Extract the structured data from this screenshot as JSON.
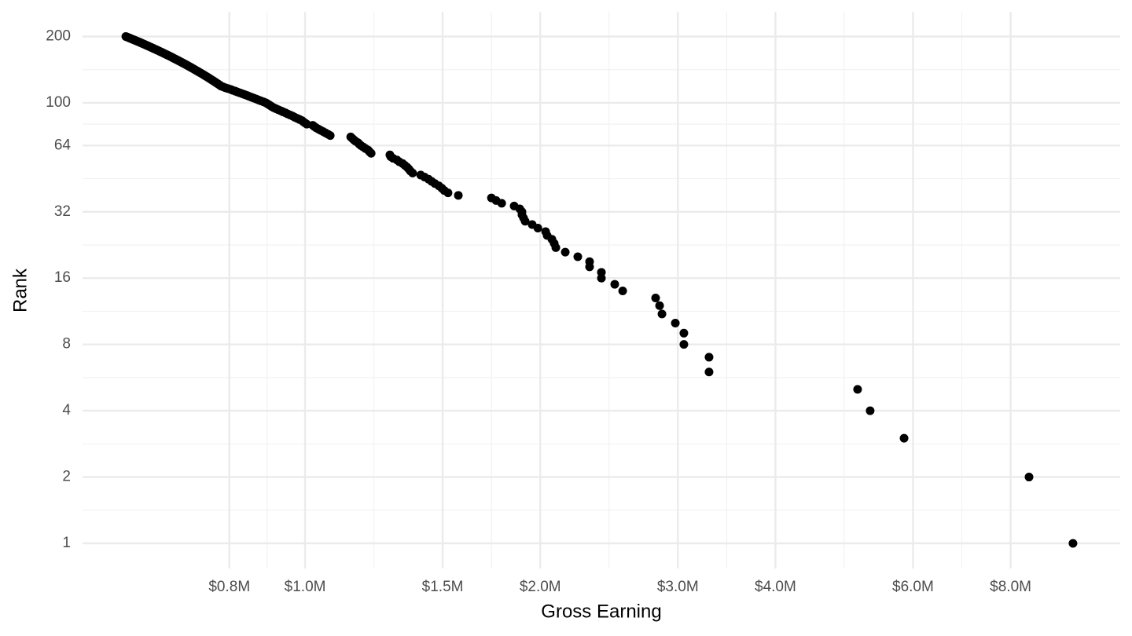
{
  "chart_data": {
    "type": "scatter",
    "x_label": "Gross Earning",
    "y_label": "Rank",
    "log_x": true,
    "log_y": true,
    "grid": true,
    "color": "#000000",
    "xlim": [
      519000,
      11050000
    ],
    "ylim": [
      0.769,
      259
    ],
    "xticks": [
      {
        "value": 800000,
        "label": "$0.8M"
      },
      {
        "value": 1000000,
        "label": "$1.0M"
      },
      {
        "value": 1500000,
        "label": "$1.5M"
      },
      {
        "value": 2000000,
        "label": "$2.0M"
      },
      {
        "value": 3000000,
        "label": "$3.0M"
      },
      {
        "value": 4000000,
        "label": "$4.0M"
      },
      {
        "value": 6000000,
        "label": "$6.0M"
      },
      {
        "value": 8000000,
        "label": "$8.0M"
      }
    ],
    "yticks": [
      1,
      2,
      4,
      8,
      16,
      32,
      64,
      100,
      200
    ],
    "x": [
      9614000,
      8446000,
      5844000,
      5288000,
      5096000,
      3289000,
      3289000,
      3054000,
      3054000,
      2978000,
      2863000,
      2843000,
      2810000,
      2550000,
      2491000,
      2395000,
      2395000,
      2313000,
      2313000,
      2234000,
      2153000,
      2094000,
      2084000,
      2070000,
      2041000,
      2032000,
      1986000,
      1953000,
      1913000,
      1904000,
      1895000,
      1895000,
      1883000,
      1852000,
      1785000,
      1756000,
      1732000,
      1571000,
      1524000,
      1507000,
      1496000,
      1483000,
      1466000,
      1452000,
      1439000,
      1422000,
      1406000,
      1373000,
      1364000,
      1358000,
      1351000,
      1342000,
      1333000,
      1320000,
      1311000,
      1296000,
      1287000,
      1284000,
      1215000,
      1209000,
      1204000,
      1195000,
      1187000,
      1179000,
      1173000,
      1168000,
      1160000,
      1154000,
      1149000,
      1144000,
      1077000,
      1070000,
      1062000,
      1055000,
      1047000,
      1040000,
      1033000,
      1028000,
      1023000,
      1005000,
      1000000,
      995000,
      991000,
      984000,
      977000,
      970000,
      964000,
      957000,
      950000,
      944000,
      937000,
      931000,
      924000,
      918000,
      912000,
      907000,
      903000,
      899000,
      895000,
      891000,
      885000,
      878000,
      872000,
      866000,
      860000,
      854000,
      848000,
      843000,
      837000,
      831000,
      825000,
      819000,
      814000,
      808000,
      803000,
      797000,
      791000,
      786000,
      781000,
      778600,
      775900,
      773200,
      770500,
      767800,
      765100,
      762500,
      759800,
      757200,
      754600,
      752000,
      749400,
      746800,
      744200,
      741600,
      739100,
      736500,
      734000,
      731400,
      728900,
      726300,
      723800,
      721300,
      718800,
      716300,
      713900,
      711400,
      708900,
      706500,
      704000,
      701500,
      699100,
      696700,
      694300,
      691900,
      689500,
      687100,
      684700,
      682300,
      679900,
      677600,
      675300,
      673000,
      670600,
      668300,
      666000,
      663700,
      661400,
      659100,
      656800,
      654400,
      652200,
      649900,
      647700,
      645400,
      643200,
      640900,
      638700,
      636500,
      634300,
      632100,
      629900,
      627700,
      625600,
      623400,
      621200,
      619100,
      617000,
      614800,
      612700,
      610500,
      608400,
      606300,
      604200,
      602100,
      600000,
      597900,
      595900,
      593800,
      591700,
      589600
    ],
    "values": [
      1,
      2,
      3,
      4,
      5,
      6,
      7,
      8,
      9,
      10,
      11,
      12,
      13,
      14,
      15,
      16,
      17,
      18,
      19,
      20,
      21,
      22,
      23,
      24,
      25,
      26,
      27,
      28,
      29,
      30,
      31,
      32,
      33,
      34,
      35,
      36,
      37,
      38,
      39,
      40,
      41,
      42,
      43,
      44,
      45,
      46,
      47,
      48,
      49,
      50,
      51,
      52,
      53,
      54,
      55,
      56,
      57,
      58,
      59,
      60,
      61,
      62,
      63,
      64,
      65,
      66,
      67,
      68,
      69,
      70,
      71,
      72,
      73,
      74,
      75,
      76,
      77,
      78,
      79,
      80,
      81,
      82,
      83,
      84,
      85,
      86,
      87,
      88,
      89,
      90,
      91,
      92,
      93,
      94,
      95,
      96,
      97,
      98,
      99,
      100,
      101,
      102,
      103,
      104,
      105,
      106,
      107,
      108,
      109,
      110,
      111,
      112,
      113,
      114,
      115,
      116,
      117,
      118,
      119,
      120,
      121,
      122,
      123,
      124,
      125,
      126,
      127,
      128,
      129,
      130,
      131,
      132,
      133,
      134,
      135,
      136,
      137,
      138,
      139,
      140,
      141,
      142,
      143,
      144,
      145,
      146,
      147,
      148,
      149,
      150,
      151,
      152,
      153,
      154,
      155,
      156,
      157,
      158,
      159,
      160,
      161,
      162,
      163,
      164,
      165,
      166,
      167,
      168,
      169,
      170,
      171,
      172,
      173,
      174,
      175,
      176,
      177,
      178,
      179,
      180,
      181,
      182,
      183,
      184,
      185,
      186,
      187,
      188,
      189,
      190,
      191,
      192,
      193,
      194,
      195,
      196,
      197,
      198,
      199,
      200
    ]
  }
}
